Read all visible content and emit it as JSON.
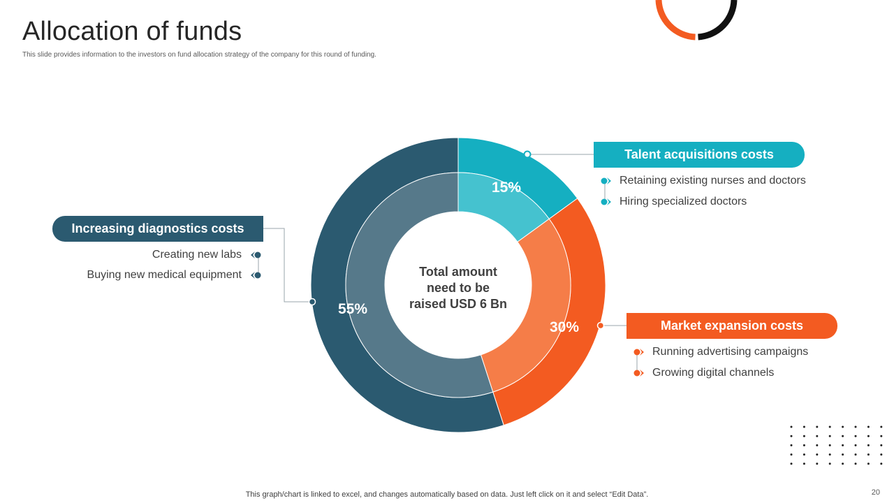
{
  "header": {
    "title": "Allocation of funds",
    "subtitle": "This slide provides information to the investors on fund allocation strategy of the company for this round of funding."
  },
  "chart_data": {
    "type": "pie",
    "title": "",
    "center_label": [
      "Total amount",
      "need to be",
      "raised USD 6 Bn"
    ],
    "slices": [
      {
        "label": "Talent acquisitions costs",
        "value": 15,
        "display": "15%",
        "color": "#15afc1",
        "inner_color": "#45c2cf"
      },
      {
        "label": "Market expansion costs",
        "value": 30,
        "display": "30%",
        "color": "#f35b21",
        "inner_color": "#f57d48"
      },
      {
        "label": "Increasing diagnostics costs",
        "value": 55,
        "display": "55%",
        "color": "#2b5a70",
        "inner_color": "#56798a"
      }
    ]
  },
  "callouts": {
    "talent": {
      "label": "Talent acquisitions costs",
      "items": [
        "Retaining existing nurses and doctors",
        "Hiring specialized doctors"
      ]
    },
    "market": {
      "label": "Market expansion costs",
      "items": [
        "Running advertising campaigns",
        "Growing digital channels"
      ]
    },
    "diagnostics": {
      "label": "Increasing diagnostics costs",
      "items": [
        "Creating new labs",
        "Buying new medical equipment"
      ]
    }
  },
  "footer": {
    "note": "This graph/chart is linked to excel, and changes automatically based on data. Just left click on it and select “Edit Data”.",
    "page_number": "20"
  },
  "colors": {
    "teal": "#15afc1",
    "orange": "#f35b21",
    "navy": "#2b5a70",
    "connector": "#9aa5ab"
  }
}
